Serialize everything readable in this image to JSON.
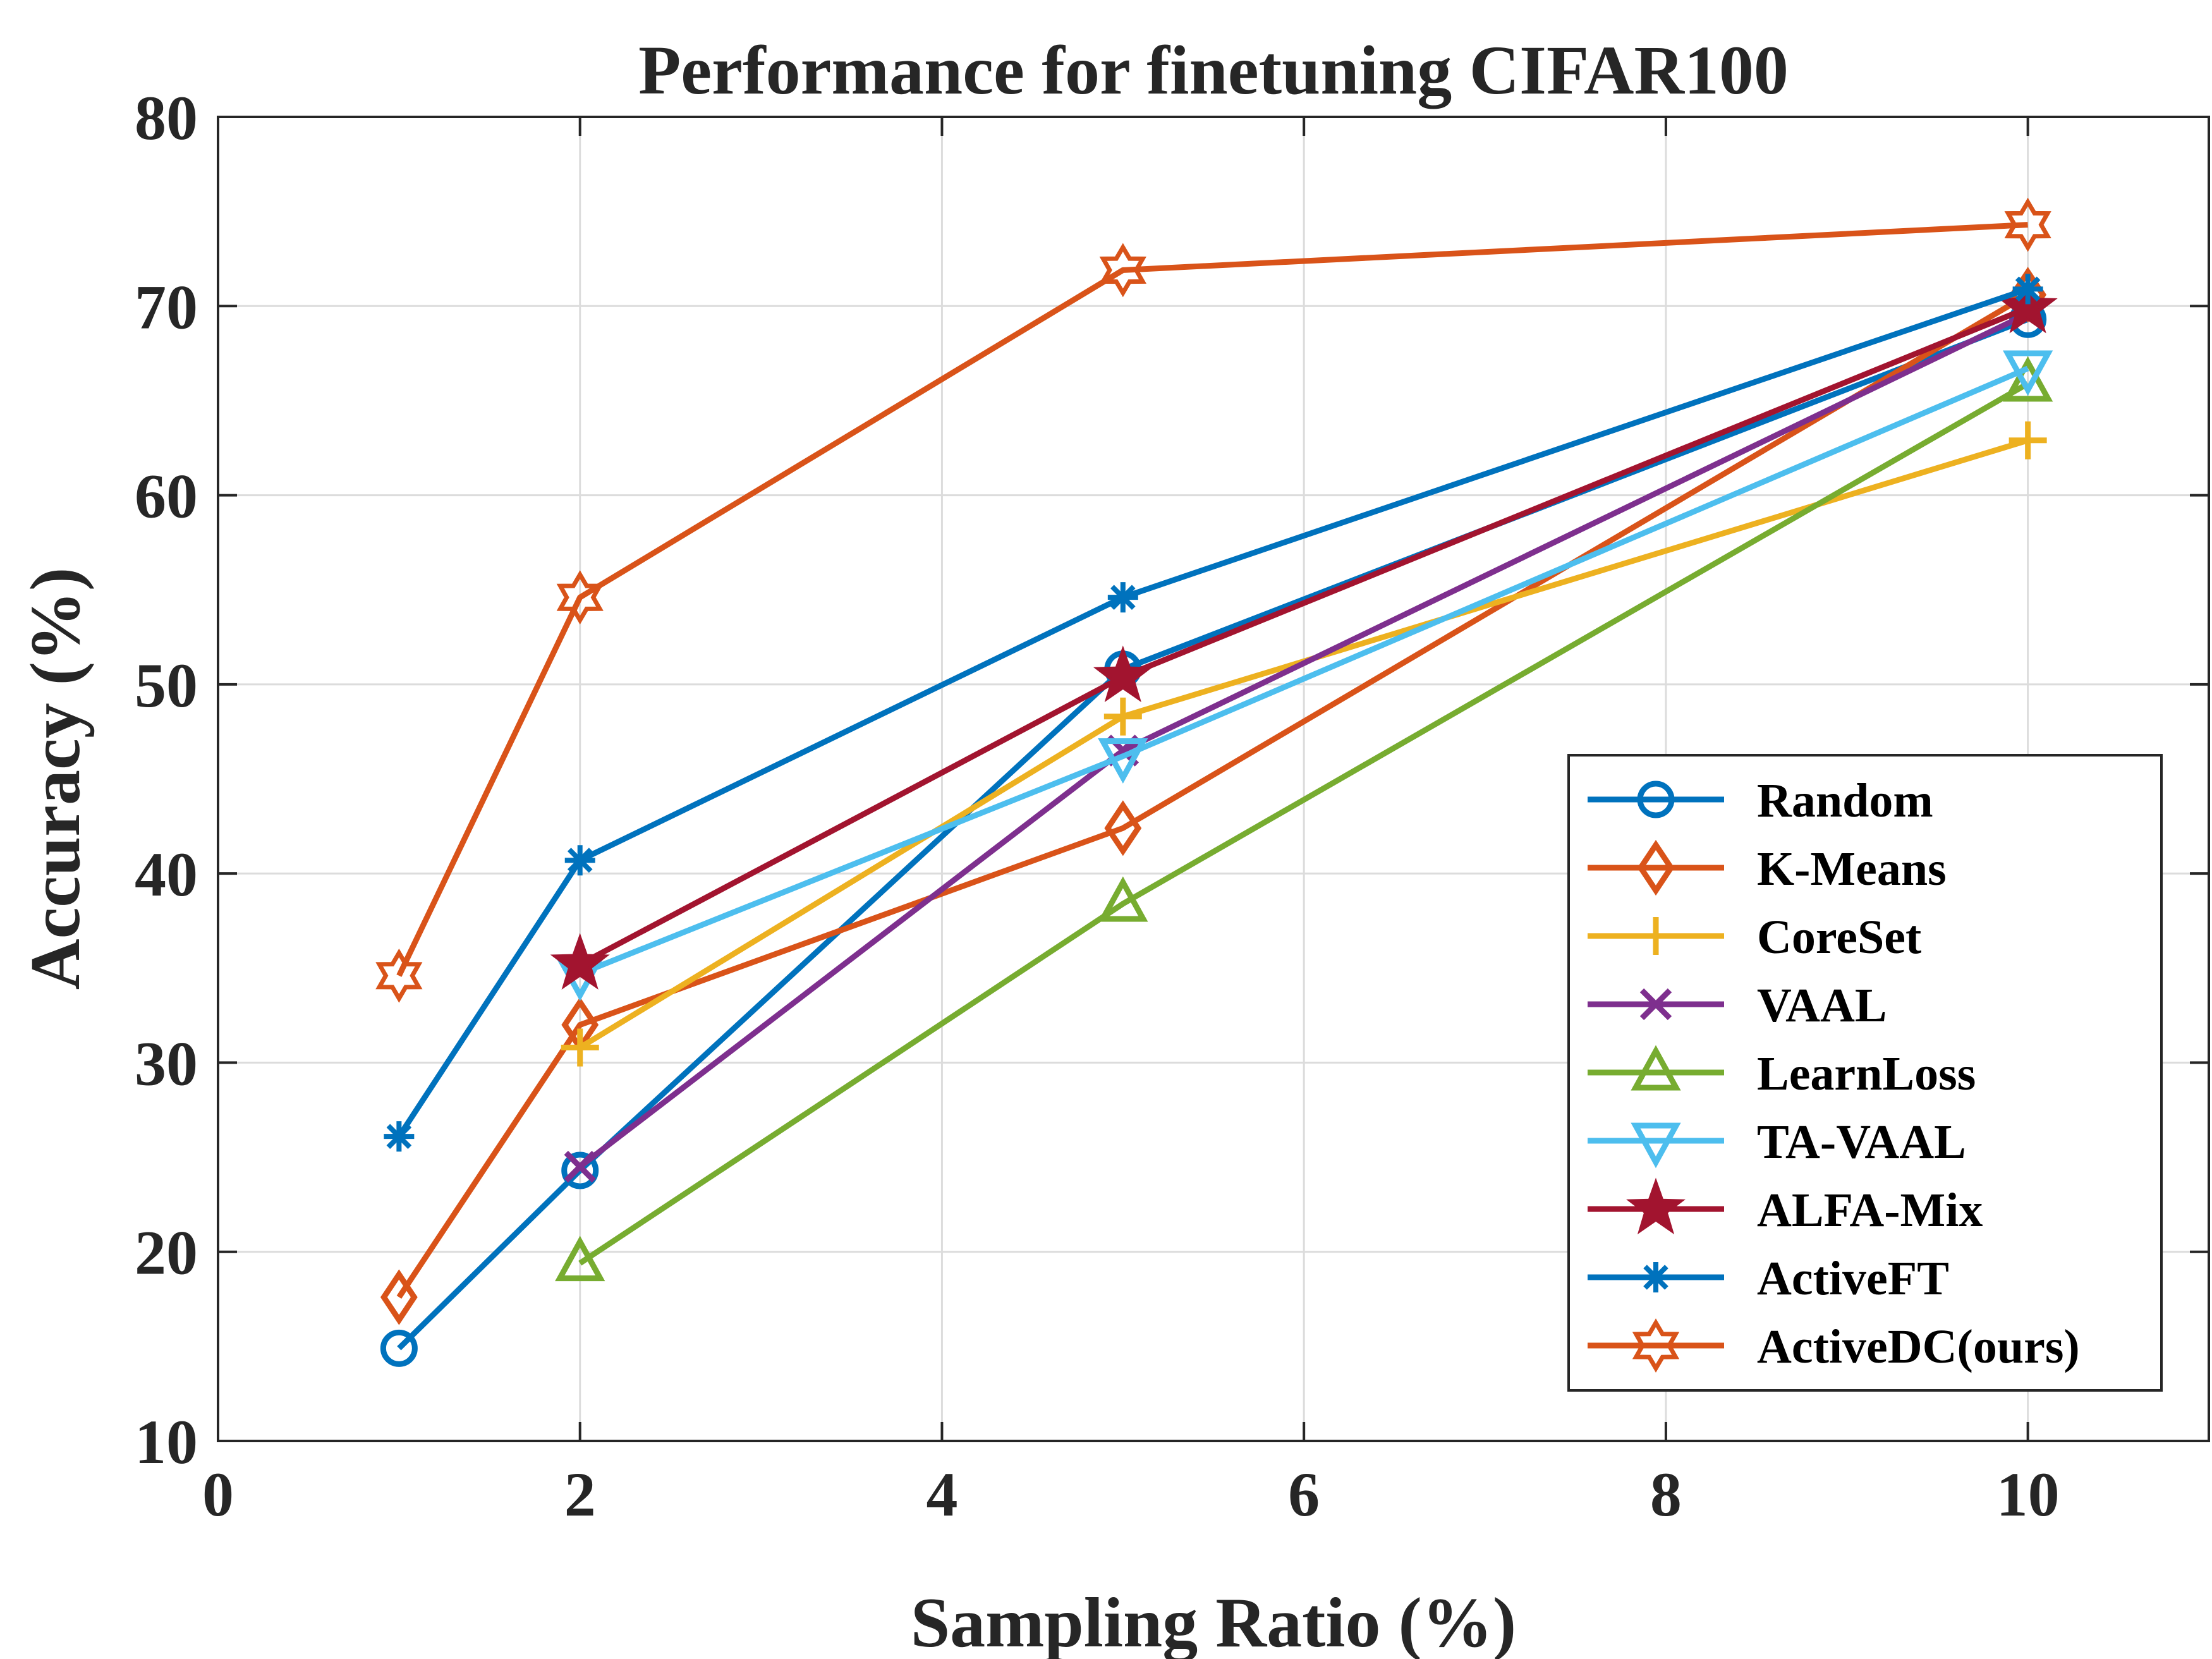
{
  "chart_data": {
    "type": "line",
    "title": "Performance for finetuning CIFAR100",
    "xlabel": "Sampling Ratio (%)",
    "ylabel": "Accuracy (%)",
    "xlim": [
      0,
      11
    ],
    "ylim": [
      10,
      80
    ],
    "xticks": [
      0,
      2,
      4,
      6,
      8,
      10
    ],
    "yticks": [
      10,
      20,
      30,
      40,
      50,
      60,
      70,
      80
    ],
    "grid": true,
    "legend_position": "bottom-right",
    "series": [
      {
        "name": "Random",
        "color": "#0072BD",
        "marker": "circle",
        "x": [
          1,
          2,
          5,
          10
        ],
        "values": [
          14.9,
          24.3,
          50.8,
          69.3
        ]
      },
      {
        "name": "K-Means",
        "color": "#D95319",
        "marker": "diamond",
        "x": [
          1,
          2,
          5,
          10
        ],
        "values": [
          17.6,
          32.0,
          42.4,
          70.6
        ]
      },
      {
        "name": "CoreSet",
        "color": "#EDB120",
        "marker": "plus",
        "x": [
          2,
          5,
          10
        ],
        "values": [
          30.8,
          48.3,
          62.9
        ]
      },
      {
        "name": "VAAL",
        "color": "#7E2F8E",
        "marker": "x",
        "x": [
          2,
          5,
          10
        ],
        "values": [
          24.5,
          46.5,
          69.6
        ]
      },
      {
        "name": "LearnLoss",
        "color": "#77AC30",
        "marker": "triangle-up",
        "x": [
          2,
          5,
          10
        ],
        "values": [
          19.4,
          38.4,
          65.9
        ]
      },
      {
        "name": "TA-VAAL",
        "color": "#4DBEEE",
        "marker": "triangle-down",
        "x": [
          2,
          5,
          10
        ],
        "values": [
          34.7,
          46.2,
          66.7
        ]
      },
      {
        "name": "ALFA-Mix",
        "color": "#A2142F",
        "marker": "pentagram",
        "x": [
          2,
          5,
          10
        ],
        "values": [
          35.2,
          50.4,
          69.9
        ]
      },
      {
        "name": "ActiveFT",
        "color": "#0072BD",
        "marker": "asterisk",
        "x": [
          1,
          2,
          5,
          10
        ],
        "values": [
          26.1,
          40.7,
          54.6,
          70.9
        ]
      },
      {
        "name": "ActiveDC(ours)",
        "color": "#D95319",
        "marker": "hexagram",
        "x": [
          1,
          2,
          5,
          10
        ],
        "values": [
          34.6,
          54.6,
          71.9,
          74.3
        ]
      }
    ]
  }
}
